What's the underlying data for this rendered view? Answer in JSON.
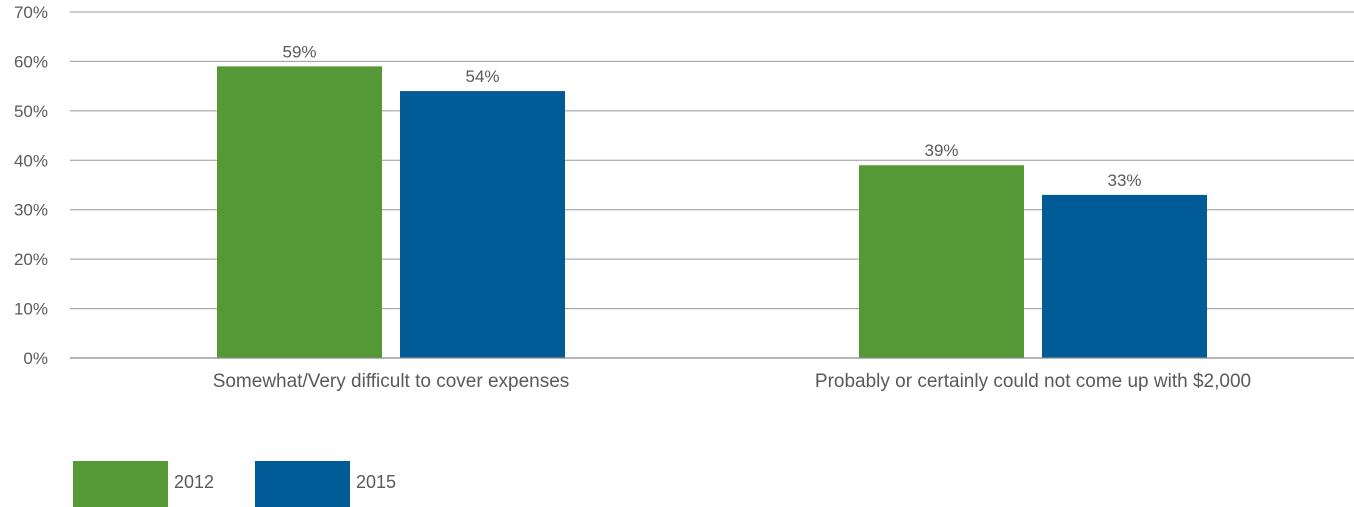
{
  "chart_data": {
    "type": "bar",
    "title": "",
    "xlabel": "",
    "ylabel": "",
    "categories": [
      "Somewhat/Very difficult to cover expenses",
      "Probably or certainly could not come up with $2,000"
    ],
    "series": [
      {
        "name": "2012",
        "color": "#559836",
        "values": [
          59,
          39
        ],
        "labels": [
          "59%",
          "39%"
        ]
      },
      {
        "name": "2015",
        "color": "#005b96",
        "values": [
          54,
          33
        ],
        "labels": [
          "54%",
          "33%"
        ]
      }
    ],
    "ylim": [
      0,
      70
    ],
    "yticks": [
      0,
      10,
      20,
      30,
      40,
      50,
      60,
      70
    ],
    "ytick_labels": [
      "0%",
      "10%",
      "20%",
      "30%",
      "40%",
      "50%",
      "60%",
      "70%"
    ],
    "grid": true,
    "legend": "bottom-left"
  }
}
